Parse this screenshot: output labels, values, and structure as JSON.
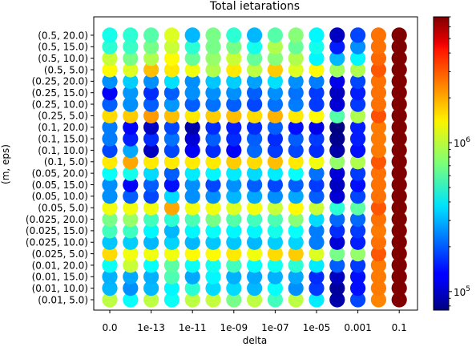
{
  "chart_data": {
    "type": "scatter",
    "title": "Total ietarations",
    "xlabel": "delta",
    "ylabel": "(m, eps)",
    "x_categories": [
      "0.0",
      "1e-14",
      "1e-13",
      "1e-12",
      "1e-11",
      "1e-10",
      "1e-09",
      "1e-08",
      "1e-07",
      "1e-06",
      "1e-05",
      "0.0001",
      "0.001",
      "0.01",
      "0.1"
    ],
    "x_tick_labels": [
      "0.0",
      "1e-13",
      "1e-11",
      "1e-09",
      "1e-07",
      "1e-05",
      "0.001",
      "0.1"
    ],
    "y_categories": [
      "(0.01, 5.0)",
      "(0.01, 10.0)",
      "(0.01, 15.0)",
      "(0.01, 20.0)",
      "(0.025, 5.0)",
      "(0.025, 10.0)",
      "(0.025, 15.0)",
      "(0.025, 20.0)",
      "(0.05, 5.0)",
      "(0.05, 10.0)",
      "(0.05, 15.0)",
      "(0.05, 20.0)",
      "(0.1, 5.0)",
      "(0.1, 10.0)",
      "(0.1, 15.0)",
      "(0.1, 20.0)",
      "(0.25, 5.0)",
      "(0.25, 10.0)",
      "(0.25, 15.0)",
      "(0.25, 20.0)",
      "(0.5, 5.0)",
      "(0.5, 10.0)",
      "(0.5, 15.0)",
      "(0.5, 20.0)"
    ],
    "color_scale": "log",
    "colormap": "jet",
    "colorbar_range": [
      75000,
      7000000
    ],
    "colorbar_tick_labels": [
      {
        "value": 100000,
        "base": "10",
        "exp": "5"
      },
      {
        "value": 1000000,
        "base": "10",
        "exp": "6"
      }
    ],
    "grid": false,
    "values": [
      [
        950000,
        420000,
        950000,
        430000,
        950000,
        980000,
        700000,
        950000,
        550000,
        950000,
        380000,
        90000,
        180000,
        2200000,
        7000000
      ],
      [
        300000,
        250000,
        300000,
        400000,
        500000,
        350000,
        350000,
        300000,
        420000,
        250000,
        170000,
        85000,
        140000,
        2300000,
        7000000
      ],
      [
        290000,
        280000,
        290000,
        580000,
        280000,
        400000,
        290000,
        280000,
        290000,
        280000,
        160000,
        100000,
        140000,
        2300000,
        7000000
      ],
      [
        430000,
        1000000,
        420000,
        620000,
        430000,
        440000,
        550000,
        420000,
        440000,
        500000,
        380000,
        200000,
        170000,
        2300000,
        7000000
      ],
      [
        1500000,
        1200000,
        1200000,
        1200000,
        1300000,
        1300000,
        1400000,
        1200000,
        1500000,
        1600000,
        1100000,
        700000,
        800000,
        2700000,
        7000000
      ],
      [
        320000,
        330000,
        300000,
        340000,
        300000,
        320000,
        320000,
        300000,
        330000,
        340000,
        230000,
        110000,
        150000,
        2400000,
        7000000
      ],
      [
        550000,
        540000,
        400000,
        300000,
        400000,
        420000,
        400000,
        400000,
        450000,
        420000,
        230000,
        160000,
        170000,
        2300000,
        7000000
      ],
      [
        700000,
        800000,
        550000,
        500000,
        570000,
        700000,
        600000,
        550000,
        580000,
        750000,
        350000,
        210000,
        210000,
        2400000,
        7000000
      ],
      [
        1200000,
        1200000,
        1200000,
        1900000,
        1200000,
        1200000,
        1100000,
        1200000,
        1000000,
        1300000,
        1000000,
        500000,
        620000,
        2700000,
        7000000
      ],
      [
        250000,
        200000,
        180000,
        350000,
        250000,
        250000,
        300000,
        280000,
        250000,
        280000,
        200000,
        110000,
        180000,
        2400000,
        7000000
      ],
      [
        250000,
        130000,
        200000,
        140000,
        250000,
        180000,
        250000,
        200000,
        180000,
        200000,
        170000,
        100000,
        140000,
        2400000,
        7000000
      ],
      [
        420000,
        450000,
        350000,
        200000,
        380000,
        400000,
        380000,
        350000,
        380000,
        420000,
        220000,
        110000,
        170000,
        2400000,
        7000000
      ],
      [
        1400000,
        1900000,
        1400000,
        1400000,
        1400000,
        1400000,
        1600000,
        1500000,
        1700000,
        1400000,
        1200000,
        800000,
        900000,
        2700000,
        7000000
      ],
      [
        180000,
        280000,
        100000,
        180000,
        130000,
        160000,
        130000,
        210000,
        170000,
        180000,
        160000,
        90000,
        140000,
        2300000,
        7000000
      ],
      [
        230000,
        150000,
        160000,
        220000,
        110000,
        200000,
        160000,
        200000,
        160000,
        200000,
        170000,
        80000,
        150000,
        2300000,
        7000000
      ],
      [
        230000,
        130000,
        100000,
        180000,
        90000,
        160000,
        150000,
        160000,
        200000,
        140000,
        120000,
        75000,
        150000,
        2300000,
        7000000
      ],
      [
        1500000,
        1600000,
        2000000,
        1700000,
        1400000,
        1600000,
        1700000,
        1500000,
        1800000,
        1400000,
        1300000,
        600000,
        900000,
        2800000,
        7000000
      ],
      [
        200000,
        250000,
        200000,
        260000,
        200000,
        220000,
        200000,
        180000,
        220000,
        230000,
        170000,
        110000,
        170000,
        2400000,
        7000000
      ],
      [
        130000,
        260000,
        160000,
        200000,
        250000,
        250000,
        250000,
        200000,
        250000,
        220000,
        170000,
        100000,
        150000,
        2400000,
        7000000
      ],
      [
        250000,
        330000,
        250000,
        360000,
        250000,
        320000,
        330000,
        270000,
        360000,
        250000,
        230000,
        120000,
        180000,
        2400000,
        7000000
      ],
      [
        1300000,
        1100000,
        1700000,
        1400000,
        1200000,
        900000,
        1400000,
        950000,
        1600000,
        1100000,
        1300000,
        850000,
        900000,
        2700000,
        7000000
      ],
      [
        1000000,
        700000,
        900000,
        1300000,
        650000,
        800000,
        1000000,
        650000,
        750000,
        900000,
        400000,
        300000,
        400000,
        2500000,
        7000000
      ],
      [
        500000,
        530000,
        700000,
        1000000,
        500000,
        700000,
        700000,
        450000,
        900000,
        650000,
        450000,
        150000,
        250000,
        2400000,
        7000000
      ],
      [
        450000,
        500000,
        600000,
        1100000,
        300000,
        700000,
        500000,
        300000,
        600000,
        750000,
        400000,
        100000,
        180000,
        2400000,
        7000000
      ]
    ]
  }
}
